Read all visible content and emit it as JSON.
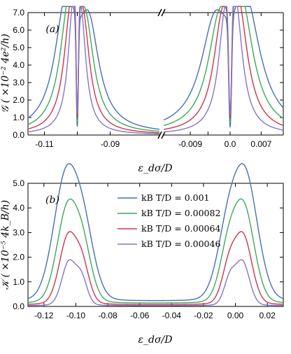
{
  "chart_data": [
    {
      "type": "line",
      "panel": "(a)",
      "ylabel": "𝒢 ( ×10⁻² 4e²/h)",
      "xlabel": "ε_dσ/D",
      "ylim": [
        0,
        7.0
      ],
      "y_ticks": [
        "0.0",
        "1.0",
        "2.0",
        "3.0",
        "4.0",
        "5.0",
        "6.0",
        "7.0"
      ],
      "broken_x_axis": true,
      "x_segments": [
        {
          "range": [
            -0.115,
            -0.075
          ],
          "ticks": [
            -0.11,
            -0.1,
            -0.09
          ],
          "tick_labels": [
            "-0.11",
            "",
            "-0.09"
          ]
        },
        {
          "range": [
            -0.015,
            0.012
          ],
          "ticks": [
            -0.009,
            -0.005,
            0.0,
            0.007
          ],
          "tick_labels": [
            "-0.009",
            "",
            "0.0",
            "0.007"
          ]
        }
      ],
      "series": [
        {
          "name": "k_B T/D=0.001",
          "color": "#4a6fb0",
          "peaks": [
            [
              -0.1035,
              6.85,
              0.004
            ],
            [
              -0.0965,
              5.35,
              0.0038
            ],
            [
              -0.0035,
              5.35,
              0.0038
            ],
            [
              0.0035,
              6.85,
              0.004
            ]
          ],
          "dip_depth": 0.93
        },
        {
          "name": "k_B T/D=0.00082",
          "color": "#3fa85a",
          "peaks": [
            [
              -0.1025,
              6.65,
              0.0033
            ],
            [
              -0.0975,
              5.15,
              0.0031
            ],
            [
              -0.0025,
              5.15,
              0.0031
            ],
            [
              0.0025,
              6.65,
              0.0033
            ]
          ],
          "dip_depth": 0.9
        },
        {
          "name": "k_B T/D=0.00064",
          "color": "#c9384a",
          "peaks": [
            [
              -0.1018,
              6.45,
              0.0026
            ],
            [
              -0.0982,
              5.05,
              0.0024
            ],
            [
              -0.0018,
              5.05,
              0.0024
            ],
            [
              0.0018,
              6.45,
              0.0026
            ]
          ],
          "dip_depth": 0.87
        },
        {
          "name": "k_B T/D=0.00046",
          "color": "#8a73c4",
          "peaks": [
            [
              -0.1012,
              6.3,
              0.0019
            ],
            [
              -0.0988,
              4.95,
              0.0018
            ],
            [
              -0.0012,
              4.95,
              0.0018
            ],
            [
              0.0012,
              6.3,
              0.0019
            ]
          ],
          "dip_depth": 0.85
        }
      ]
    },
    {
      "type": "line",
      "panel": "(b)",
      "ylabel": "𝒦 ( ×10⁻⁵ 4k_B/h)",
      "xlabel": "ε_dσ/D",
      "xlim": [
        -0.13,
        0.03
      ],
      "ylim": [
        0,
        5.0
      ],
      "x_ticks": [
        -0.12,
        -0.1,
        -0.08,
        -0.06,
        -0.04,
        -0.02,
        0.0,
        0.02
      ],
      "x_tick_labels": [
        "-0.12",
        "-0.10",
        "-0.08",
        "-0.06",
        "-0.04",
        "-0.02",
        "0.00",
        "0.02"
      ],
      "y_ticks": [
        "0.0",
        "1.0",
        "2.0",
        "3.0",
        "4.0",
        "5.0"
      ],
      "legend_placement": "top-center",
      "series": [
        {
          "name": "k_B T/D=0.001",
          "color": "#4a6fb0",
          "peaks": [
            [
              -0.1065,
              4.3,
              0.0085
            ],
            [
              -0.095,
              2.2,
              0.0075
            ],
            [
              -0.005,
              2.2,
              0.0075
            ],
            [
              0.0065,
              4.3,
              0.0085
            ]
          ],
          "baseline": 0.2
        },
        {
          "name": "k_B T/D=0.00082",
          "color": "#3fa85a",
          "peaks": [
            [
              -0.1055,
              3.3,
              0.0072
            ],
            [
              -0.0955,
              1.75,
              0.0062
            ],
            [
              -0.0045,
              1.75,
              0.0062
            ],
            [
              0.0055,
              3.3,
              0.0072
            ]
          ],
          "baseline": 0.12
        },
        {
          "name": "k_B T/D=0.00064",
          "color": "#c9384a",
          "peaks": [
            [
              -0.105,
              2.4,
              0.006
            ],
            [
              -0.096,
              1.3,
              0.005
            ],
            [
              -0.004,
              1.3,
              0.005
            ],
            [
              0.005,
              2.4,
              0.006
            ]
          ],
          "baseline": 0.07
        },
        {
          "name": "k_B T/D=0.00046",
          "color": "#8a73c4",
          "peaks": [
            [
              -0.1045,
              1.55,
              0.0048
            ],
            [
              -0.0965,
              0.95,
              0.004
            ],
            [
              -0.0035,
              0.95,
              0.004
            ],
            [
              0.0045,
              1.55,
              0.0048
            ]
          ],
          "baseline": 0.03
        }
      ]
    }
  ],
  "legend": {
    "items": [
      {
        "label": "kB T/D = 0.001",
        "color": "#4a6fb0"
      },
      {
        "label": "kB T/D = 0.00082",
        "color": "#3fa85a"
      },
      {
        "label": "kB T/D = 0.00064",
        "color": "#c9384a"
      },
      {
        "label": "kB T/D = 0.00046",
        "color": "#8a73c4"
      }
    ]
  },
  "labels": {
    "panel_a": "(a)",
    "panel_b": "(b)",
    "ylabel_a": "𝒢 ( ×10⁻²  4e²/h)",
    "ylabel_b": "𝒦 ( ×10⁻⁵  4k_B/h)",
    "xlabel_a": "ε_dσ/D",
    "xlabel_b": "ε_dσ/D"
  }
}
